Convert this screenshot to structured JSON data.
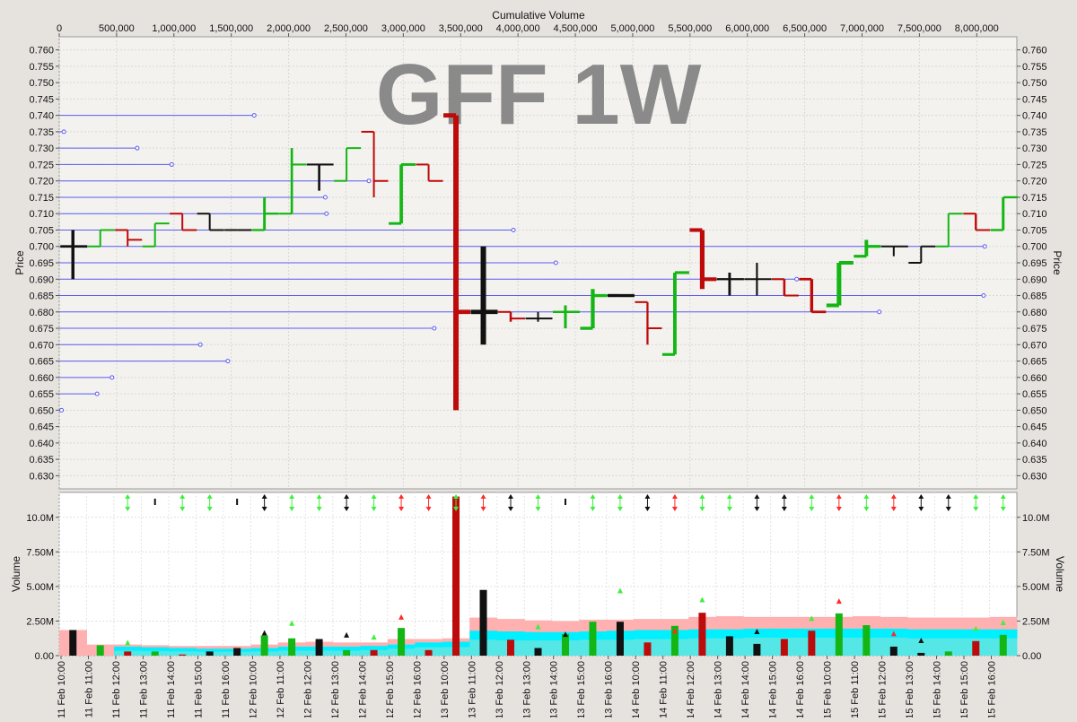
{
  "chart_data": [
    {
      "type": "bar",
      "subtype": "ohlc-price-bars-with-volume-at-price",
      "watermark": "GFF 1W",
      "top_axis_label": "Cumulative Volume",
      "top_axis_ticks": [
        "0",
        "500,000",
        "1,000,000",
        "1,500,000",
        "2,000,000",
        "2,500,000",
        "3,000,000",
        "3,500,000",
        "4,000,000",
        "4,500,000",
        "5,000,000",
        "5,500,000",
        "6,000,000",
        "6,500,000",
        "7,000,000",
        "7,500,000",
        "8,000,000"
      ],
      "top_axis_range": [
        0,
        8350000
      ],
      "ylabel": "Price",
      "ylim": [
        0.626,
        0.764
      ],
      "y_ticks": [
        "0.630",
        "0.635",
        "0.640",
        "0.645",
        "0.650",
        "0.655",
        "0.660",
        "0.665",
        "0.670",
        "0.675",
        "0.680",
        "0.685",
        "0.690",
        "0.695",
        "0.700",
        "0.705",
        "0.710",
        "0.715",
        "0.720",
        "0.725",
        "0.730",
        "0.735",
        "0.740",
        "0.745",
        "0.750",
        "0.755",
        "0.760"
      ],
      "grid": true,
      "volume_at_price": [
        {
          "price": 0.74,
          "cum_volume": 1700000
        },
        {
          "price": 0.735,
          "cum_volume": 40000
        },
        {
          "price": 0.73,
          "cum_volume": 680000
        },
        {
          "price": 0.725,
          "cum_volume": 980000
        },
        {
          "price": 0.72,
          "cum_volume": 2700000
        },
        {
          "price": 0.715,
          "cum_volume": 2320000
        },
        {
          "price": 0.71,
          "cum_volume": 2330000
        },
        {
          "price": 0.705,
          "cum_volume": 3960000
        },
        {
          "price": 0.7,
          "cum_volume": 8070000
        },
        {
          "price": 0.695,
          "cum_volume": 4330000
        },
        {
          "price": 0.69,
          "cum_volume": 6430000
        },
        {
          "price": 0.685,
          "cum_volume": 8060000
        },
        {
          "price": 0.68,
          "cum_volume": 7150000
        },
        {
          "price": 0.675,
          "cum_volume": 3270000
        },
        {
          "price": 0.67,
          "cum_volume": 1230000
        },
        {
          "price": 0.665,
          "cum_volume": 1470000
        },
        {
          "price": 0.66,
          "cum_volume": 460000
        },
        {
          "price": 0.655,
          "cum_volume": 330000
        },
        {
          "price": 0.65,
          "cum_volume": 20000
        }
      ],
      "ohlc": [
        {
          "bar": 0,
          "open": 0.7,
          "high": 0.705,
          "low": 0.69,
          "close": 0.7,
          "color": "black"
        },
        {
          "bar": 1,
          "open": 0.7,
          "high": 0.705,
          "low": 0.7,
          "close": 0.705,
          "color": "green"
        },
        {
          "bar": 2,
          "open": 0.705,
          "high": 0.705,
          "low": 0.7,
          "close": 0.702,
          "color": "red"
        },
        {
          "bar": 3,
          "open": 0.7,
          "high": 0.707,
          "low": 0.7,
          "close": 0.707,
          "color": "green"
        },
        {
          "bar": 4,
          "open": 0.71,
          "high": 0.71,
          "low": 0.705,
          "close": 0.705,
          "color": "red"
        },
        {
          "bar": 5,
          "open": 0.71,
          "high": 0.71,
          "low": 0.705,
          "close": 0.705,
          "color": "black"
        },
        {
          "bar": 6,
          "open": 0.705,
          "high": 0.705,
          "low": 0.705,
          "close": 0.705,
          "color": "black"
        },
        {
          "bar": 7,
          "open": 0.705,
          "high": 0.715,
          "low": 0.705,
          "close": 0.71,
          "color": "green"
        },
        {
          "bar": 8,
          "open": 0.71,
          "high": 0.73,
          "low": 0.71,
          "close": 0.725,
          "color": "green"
        },
        {
          "bar": 9,
          "open": 0.725,
          "high": 0.725,
          "low": 0.717,
          "close": 0.725,
          "color": "black"
        },
        {
          "bar": 10,
          "open": 0.72,
          "high": 0.73,
          "low": 0.72,
          "close": 0.73,
          "color": "green"
        },
        {
          "bar": 11,
          "open": 0.735,
          "high": 0.735,
          "low": 0.715,
          "close": 0.72,
          "color": "red"
        },
        {
          "bar": 12,
          "open": 0.707,
          "high": 0.725,
          "low": 0.707,
          "close": 0.725,
          "color": "green"
        },
        {
          "bar": 13,
          "open": 0.725,
          "high": 0.725,
          "low": 0.72,
          "close": 0.72,
          "color": "red"
        },
        {
          "bar": 14,
          "open": 0.74,
          "high": 0.74,
          "low": 0.65,
          "close": 0.68,
          "color": "red"
        },
        {
          "bar": 15,
          "open": 0.68,
          "high": 0.7,
          "low": 0.67,
          "close": 0.68,
          "color": "black"
        },
        {
          "bar": 16,
          "open": 0.68,
          "high": 0.68,
          "low": 0.677,
          "close": 0.678,
          "color": "red"
        },
        {
          "bar": 17,
          "open": 0.678,
          "high": 0.68,
          "low": 0.677,
          "close": 0.678,
          "color": "black"
        },
        {
          "bar": 18,
          "open": 0.68,
          "high": 0.682,
          "low": 0.675,
          "close": 0.68,
          "color": "green"
        },
        {
          "bar": 19,
          "open": 0.675,
          "high": 0.687,
          "low": 0.675,
          "close": 0.685,
          "color": "green"
        },
        {
          "bar": 20,
          "open": 0.685,
          "high": 0.685,
          "low": 0.685,
          "close": 0.685,
          "color": "black"
        },
        {
          "bar": 21,
          "open": 0.683,
          "high": 0.683,
          "low": 0.67,
          "close": 0.675,
          "color": "red"
        },
        {
          "bar": 22,
          "open": 0.667,
          "high": 0.692,
          "low": 0.667,
          "close": 0.692,
          "color": "green"
        },
        {
          "bar": 23,
          "open": 0.705,
          "high": 0.705,
          "low": 0.687,
          "close": 0.69,
          "color": "red"
        },
        {
          "bar": 24,
          "open": 0.69,
          "high": 0.692,
          "low": 0.685,
          "close": 0.69,
          "color": "black"
        },
        {
          "bar": 25,
          "open": 0.69,
          "high": 0.695,
          "low": 0.685,
          "close": 0.69,
          "color": "black"
        },
        {
          "bar": 26,
          "open": 0.69,
          "high": 0.69,
          "low": 0.685,
          "close": 0.685,
          "color": "red"
        },
        {
          "bar": 27,
          "open": 0.69,
          "high": 0.69,
          "low": 0.68,
          "close": 0.68,
          "color": "red"
        },
        {
          "bar": 28,
          "open": 0.682,
          "high": 0.695,
          "low": 0.682,
          "close": 0.695,
          "color": "green"
        },
        {
          "bar": 29,
          "open": 0.697,
          "high": 0.702,
          "low": 0.697,
          "close": 0.7,
          "color": "green"
        },
        {
          "bar": 30,
          "open": 0.7,
          "high": 0.7,
          "low": 0.697,
          "close": 0.7,
          "color": "black"
        },
        {
          "bar": 31,
          "open": 0.695,
          "high": 0.7,
          "low": 0.695,
          "close": 0.7,
          "color": "black"
        },
        {
          "bar": 32,
          "open": 0.7,
          "high": 0.71,
          "low": 0.7,
          "close": 0.71,
          "color": "green"
        },
        {
          "bar": 33,
          "open": 0.71,
          "high": 0.71,
          "low": 0.705,
          "close": 0.705,
          "color": "red"
        },
        {
          "bar": 34,
          "open": 0.705,
          "high": 0.715,
          "low": 0.705,
          "close": 0.715,
          "color": "green"
        }
      ]
    },
    {
      "type": "bar",
      "subtype": "volume",
      "ylabel": "Volume",
      "ylim": [
        0,
        11800000
      ],
      "y_ticks": [
        "0.00",
        "2.50M",
        "5.00M",
        "7.50M",
        "10.0M"
      ],
      "x_tick_labels": [
        "11 Feb 10:00",
        "11 Feb 11:00",
        "11 Feb 12:00",
        "11 Feb 13:00",
        "11 Feb 14:00",
        "11 Feb 15:00",
        "11 Feb 16:00",
        "12 Feb 10:00",
        "12 Feb 11:00",
        "12 Feb 12:00",
        "12 Feb 13:00",
        "12 Feb 14:00",
        "12 Feb 15:00",
        "12 Feb 16:00",
        "13 Feb 10:00",
        "13 Feb 11:00",
        "13 Feb 12:00",
        "13 Feb 13:00",
        "13 Feb 14:00",
        "13 Feb 15:00",
        "13 Feb 16:00",
        "14 Feb 10:00",
        "14 Feb 11:00",
        "14 Feb 12:00",
        "14 Feb 13:00",
        "14 Feb 14:00",
        "14 Feb 15:00",
        "14 Feb 16:00",
        "15 Feb 10:00",
        "15 Feb 11:00",
        "15 Feb 12:00",
        "15 Feb 13:00",
        "15 Feb 14:00",
        "15 Feb 15:00",
        "15 Feb 16:00"
      ],
      "volumes": [
        1850000,
        750000,
        300000,
        300000,
        80000,
        300000,
        550000,
        1450000,
        1250000,
        1200000,
        400000,
        400000,
        2000000,
        400000,
        11500000,
        4750000,
        1150000,
        550000,
        1550000,
        2450000,
        2450000,
        950000,
        2150000,
        3100000,
        1400000,
        850000,
        1200000,
        1800000,
        3050000,
        2200000,
        650000,
        200000,
        300000,
        1050000,
        1500000
      ],
      "bar_colors": [
        "black",
        "green",
        "red",
        "green",
        "red",
        "black",
        "black",
        "green",
        "green",
        "black",
        "green",
        "red",
        "green",
        "red",
        "red",
        "black",
        "red",
        "black",
        "green",
        "green",
        "black",
        "red",
        "green",
        "red",
        "black",
        "black",
        "red",
        "red",
        "green",
        "green",
        "black",
        "black",
        "green",
        "red",
        "green"
      ],
      "band_red": [
        1850000,
        800000,
        800000,
        750000,
        700000,
        700000,
        700000,
        800000,
        950000,
        1000000,
        950000,
        950000,
        1200000,
        1200000,
        1250000,
        2750000,
        2650000,
        2550000,
        2500000,
        2600000,
        2600000,
        2650000,
        2650000,
        2800000,
        2850000,
        2800000,
        2800000,
        2800000,
        2800000,
        2850000,
        2800000,
        2750000,
        2750000,
        2750000,
        2800000
      ],
      "band_cyan": [
        0,
        0,
        650000,
        600000,
        550000,
        500000,
        500000,
        550000,
        650000,
        650000,
        650000,
        700000,
        800000,
        950000,
        1000000,
        1800000,
        1750000,
        1700000,
        1700000,
        1750000,
        1800000,
        1850000,
        1850000,
        1900000,
        1900000,
        1950000,
        1950000,
        1950000,
        1950000,
        1950000,
        1950000,
        1900000,
        1900000,
        1900000,
        1900000
      ],
      "band_cyan_dark": [
        0,
        0,
        350000,
        330000,
        300000,
        280000,
        280000,
        300000,
        360000,
        360000,
        360000,
        400000,
        500000,
        600000,
        620000,
        1150000,
        1100000,
        1100000,
        1100000,
        1150000,
        1150000,
        1200000,
        1200000,
        1250000,
        1250000,
        1300000,
        1300000,
        1300000,
        1300000,
        1300000,
        1300000,
        1250000,
        1250000,
        1250000,
        1250000
      ],
      "markers": [
        {
          "bar": 0,
          "type": "none"
        },
        {
          "bar": 1,
          "type": "none"
        },
        {
          "bar": 2,
          "type": "down",
          "color": "green",
          "value": 950000
        },
        {
          "bar": 3,
          "type": "tick",
          "color": "black"
        },
        {
          "bar": 4,
          "type": "updown",
          "color": "green"
        },
        {
          "bar": 5,
          "type": "updown",
          "color": "green"
        },
        {
          "bar": 6,
          "type": "tick",
          "color": "black"
        },
        {
          "bar": 7,
          "type": "updown",
          "color": "black",
          "value": 1650000
        },
        {
          "bar": 8,
          "type": "updown",
          "color": "green",
          "value": 2350000
        },
        {
          "bar": 9,
          "type": "updown",
          "color": "green"
        },
        {
          "bar": 10,
          "type": "updown",
          "color": "black",
          "value": 1500000
        },
        {
          "bar": 11,
          "type": "updown",
          "color": "green",
          "value": 1350000
        },
        {
          "bar": 12,
          "type": "updown",
          "color": "red",
          "value": 2800000
        },
        {
          "bar": 13,
          "type": "updown",
          "color": "red"
        },
        {
          "bar": 14,
          "type": "updown",
          "color": "green"
        },
        {
          "bar": 15,
          "type": "updown",
          "color": "red"
        },
        {
          "bar": 16,
          "type": "updown",
          "color": "black"
        },
        {
          "bar": 17,
          "type": "updown",
          "color": "green",
          "value": 2100000
        },
        {
          "bar": 18,
          "type": "tick",
          "color": "black",
          "value": 1550000
        },
        {
          "bar": 19,
          "type": "updown",
          "color": "green"
        },
        {
          "bar": 20,
          "type": "updown",
          "color": "green",
          "value": 4700000
        },
        {
          "bar": 21,
          "type": "updown",
          "color": "black"
        },
        {
          "bar": 22,
          "type": "updown",
          "color": "red",
          "value": 1800000
        },
        {
          "bar": 23,
          "type": "updown",
          "color": "green",
          "value": 4050000
        },
        {
          "bar": 24,
          "type": "updown",
          "color": "green"
        },
        {
          "bar": 25,
          "type": "updown",
          "color": "black",
          "value": 1750000
        },
        {
          "bar": 26,
          "type": "updown",
          "color": "black"
        },
        {
          "bar": 27,
          "type": "updown",
          "color": "green",
          "value": 2700000
        },
        {
          "bar": 28,
          "type": "updown",
          "color": "red",
          "value": 3950000
        },
        {
          "bar": 29,
          "type": "updown",
          "color": "green"
        },
        {
          "bar": 30,
          "type": "updown",
          "color": "red",
          "value": 1600000
        },
        {
          "bar": 31,
          "type": "updown",
          "color": "black",
          "value": 1100000
        },
        {
          "bar": 32,
          "type": "updown",
          "color": "black"
        },
        {
          "bar": 33,
          "type": "updown",
          "color": "green",
          "value": 1950000
        },
        {
          "bar": 34,
          "type": "updown",
          "color": "green",
          "value": 2400000
        }
      ]
    }
  ],
  "colors": {
    "green": "#13b613",
    "red": "#bd0a0a",
    "black": "#111111",
    "vap_line": "#5a5cf0",
    "band_red": "#ffb0b0",
    "band_cyan": "#00f0ff",
    "band_cyan_dark": "#55e6e6",
    "watermark": "#8a8a8a",
    "marker_green": "#3ef03e",
    "marker_red": "#ff2a2a"
  }
}
